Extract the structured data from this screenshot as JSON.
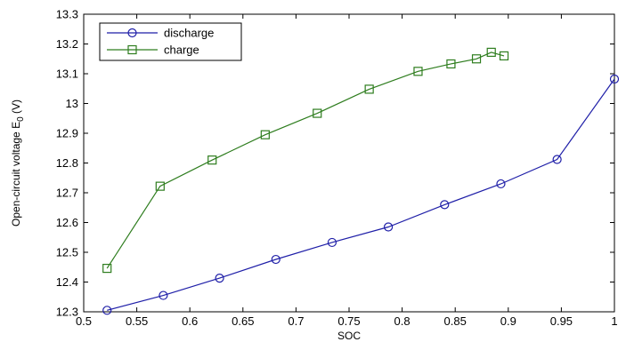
{
  "chart_data": {
    "type": "line",
    "title": "",
    "xlabel": "SOC",
    "ylabel": "Open-circuit voltage E",
    "ylabel_subscript": "0",
    "ylabel_unit": " (V)",
    "xlim": [
      0.5,
      1.0
    ],
    "ylim": [
      12.3,
      13.3
    ],
    "x_ticks": [
      0.5,
      0.55,
      0.6,
      0.65,
      0.7,
      0.75,
      0.8,
      0.85,
      0.9,
      0.95,
      1
    ],
    "x_tick_labels": [
      "0.5",
      "0.55",
      "0.6",
      "0.65",
      "0.7",
      "0.75",
      "0.8",
      "0.85",
      "0.9",
      "0.95",
      "1"
    ],
    "y_ticks": [
      12.3,
      12.4,
      12.5,
      12.6,
      12.7,
      12.8,
      12.9,
      13.0,
      13.1,
      13.2,
      13.3
    ],
    "y_tick_labels": [
      "12.3",
      "12.4",
      "12.5",
      "12.6",
      "12.7",
      "12.8",
      "12.9",
      "13",
      "13.1",
      "13.2",
      "13.3"
    ],
    "grid": false,
    "legend_position": "top-left",
    "series": [
      {
        "name": "discharge",
        "marker": "circle",
        "color": "#1f1fa8",
        "x": [
          0.522,
          0.575,
          0.628,
          0.681,
          0.734,
          0.787,
          0.84,
          0.893,
          0.946,
          1.0
        ],
        "y": [
          12.305,
          12.355,
          12.413,
          12.476,
          12.533,
          12.585,
          12.66,
          12.73,
          12.812,
          13.082
        ]
      },
      {
        "name": "charge",
        "marker": "square",
        "color": "#2e7d1e",
        "x": [
          0.522,
          0.572,
          0.621,
          0.671,
          0.72,
          0.769,
          0.815,
          0.846,
          0.87,
          0.884,
          0.896
        ],
        "y": [
          12.446,
          12.722,
          12.81,
          12.895,
          12.967,
          13.048,
          13.108,
          13.133,
          13.15,
          13.172,
          13.16
        ]
      }
    ]
  }
}
